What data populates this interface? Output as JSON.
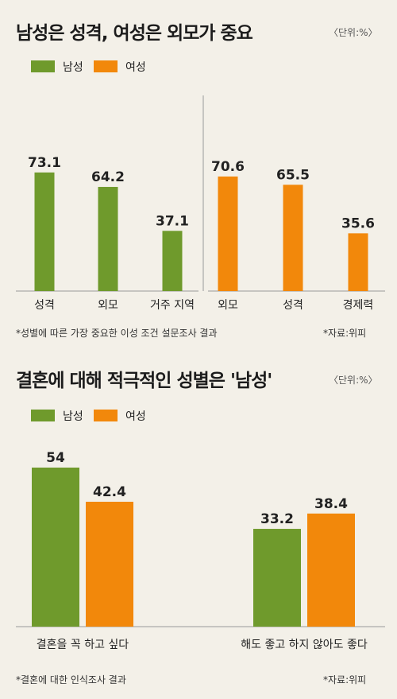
{
  "colors": {
    "male": "#6f9a2c",
    "female": "#f2880b"
  },
  "chart_data": [
    {
      "type": "bar",
      "title": "남성은 성격, 여성은 외모가 중요",
      "unit": "〈단위:%〉",
      "legend": [
        "남성",
        "여성"
      ],
      "series": [
        {
          "name": "남성",
          "categories": [
            "성격",
            "외모",
            "거주 지역"
          ],
          "values": [
            73.1,
            64.2,
            37.1
          ]
        },
        {
          "name": "여성",
          "categories": [
            "외모",
            "성격",
            "경제력"
          ],
          "values": [
            70.6,
            65.5,
            35.6
          ]
        }
      ],
      "value_labels": [
        "73.1",
        "64.2",
        "37.1",
        "70.6",
        "65.5",
        "35.6"
      ],
      "ylim": [
        0,
        80
      ],
      "note": "*성별에 따른 가장 중요한 이성 조건 설문조사 결과",
      "source": "*자료:위피"
    },
    {
      "type": "bar",
      "title": "결혼에 대해 적극적인 성별은 '남성'",
      "unit": "〈단위:%〉",
      "legend": [
        "남성",
        "여성"
      ],
      "categories": [
        "결혼을 꼭 하고 싶다",
        "해도 좋고 하지 않아도 좋다"
      ],
      "series": [
        {
          "name": "남성",
          "values": [
            54,
            33.2
          ]
        },
        {
          "name": "여성",
          "values": [
            42.4,
            38.4
          ]
        }
      ],
      "value_labels": [
        "54",
        "42.4",
        "33.2",
        "38.4"
      ],
      "ylim": [
        0,
        60
      ],
      "note": "*결혼에 대한 인식조사 결과",
      "source": "*자료:위피"
    }
  ]
}
